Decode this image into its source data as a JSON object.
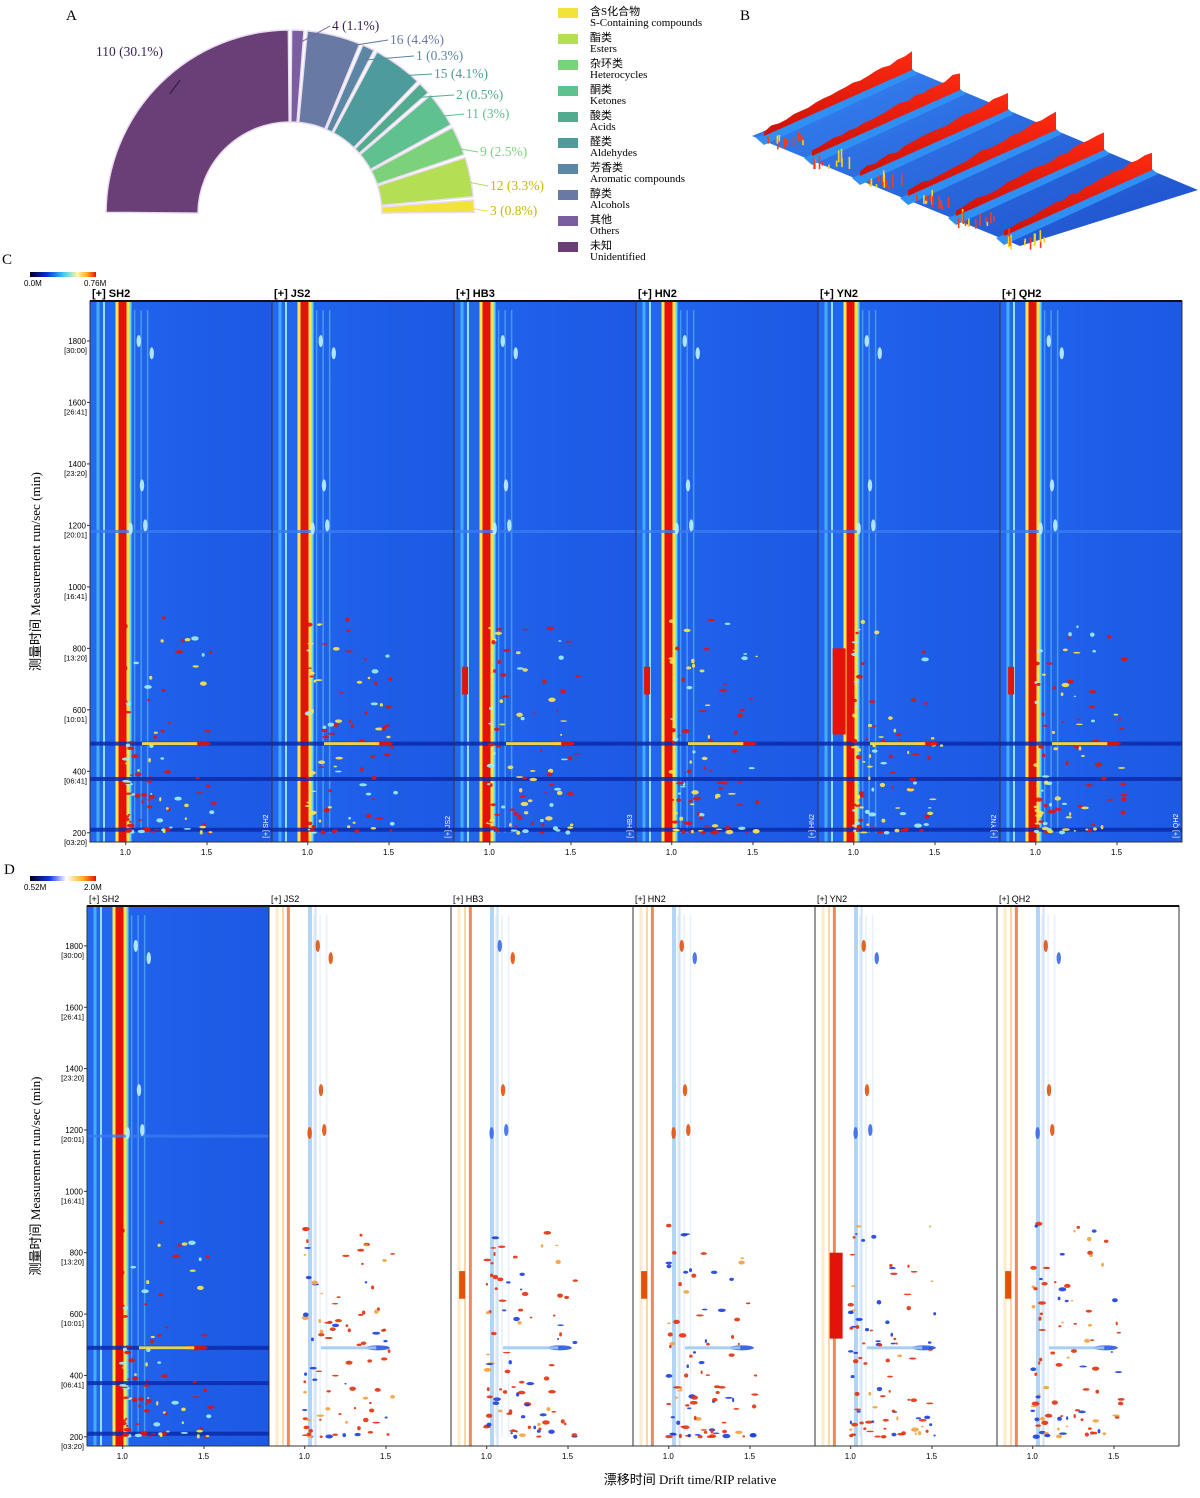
{
  "panel_letters": {
    "a": "A",
    "b": "B",
    "c": "C",
    "d": "D"
  },
  "colors": {
    "unidentified": "#6a3f78",
    "others": "#7a5ea0",
    "alcohols": "#687aa4",
    "aromatic": "#5b86a4",
    "aldehydes": "#4d9b9b",
    "acids": "#52aa8f",
    "ketones": "#5fc090",
    "heterocycles": "#7cd27b",
    "esters": "#b4de54",
    "s_containing": "#f2e33a",
    "ims_background": "#1f5ee8",
    "ims_rip": "#e3120b"
  },
  "chart_data": [
    {
      "id": "A",
      "type": "pie",
      "subtype": "half-donut",
      "slices": [
        {
          "key": "unidentified",
          "zh": "未知",
          "en": "Unidentified",
          "count": 110,
          "percent": 30.1,
          "label": "110 (30.1%)",
          "color": "#6a3f78"
        },
        {
          "key": "others",
          "zh": "其他",
          "en": "Others",
          "count": 4,
          "percent": 1.1,
          "label": "4 (1.1%)",
          "color": "#7a5ea0"
        },
        {
          "key": "alcohols",
          "zh": "醇类",
          "en": "Alcohols",
          "count": 16,
          "percent": 4.4,
          "label": "16 (4.4%)",
          "color": "#687aa4"
        },
        {
          "key": "aromatic",
          "zh": "芳香类",
          "en": "Aromatic compounds",
          "count": 1,
          "percent": 0.3,
          "label": "1 (0.3%)",
          "color": "#5b86a4"
        },
        {
          "key": "aldehydes",
          "zh": "醛类",
          "en": "Aldehydes",
          "count": 15,
          "percent": 4.1,
          "label": "15 (4.1%)",
          "color": "#4d9b9b"
        },
        {
          "key": "acids",
          "zh": "酸类",
          "en": "Acids",
          "count": 2,
          "percent": 0.5,
          "label": "2 (0.5%)",
          "color": "#52aa8f"
        },
        {
          "key": "ketones",
          "zh": "酮类",
          "en": "Ketones",
          "count": 11,
          "percent": 3,
          "label": "11 (3%)",
          "color": "#5fc090"
        },
        {
          "key": "heterocycles",
          "zh": "杂环类",
          "en": "Heterocycles",
          "count": 9,
          "percent": 2.5,
          "label": "9 (2.5%)",
          "color": "#7cd27b"
        },
        {
          "key": "esters",
          "zh": "酯类",
          "en": "Esters",
          "count": 12,
          "percent": 3.3,
          "label": "12 (3.3%)",
          "color": "#b4de54"
        },
        {
          "key": "s_containing",
          "zh": "含S化合物",
          "en": "S-Containing compounds",
          "count": 3,
          "percent": 0.8,
          "label": "3 (0.8%)",
          "color": "#f2e33a"
        }
      ],
      "legend_order": [
        "s_containing",
        "esters",
        "heterocycles",
        "ketones",
        "acids",
        "aldehydes",
        "aromatic",
        "alcohols",
        "others",
        "unidentified"
      ],
      "legend_placement": "right"
    },
    {
      "id": "B",
      "type": "heatmap",
      "subtype": "3d-topographic",
      "sample_count": 6
    },
    {
      "id": "C",
      "type": "heatmap",
      "samples": [
        "[+] SH2",
        "[+] JS2",
        "[+] HB3",
        "[+] HN2",
        "[+] YN2",
        "[+] QH2"
      ],
      "side_labels": [
        "[+] SH2",
        "[+] JS2",
        "[+] HB3",
        "[+] HN2",
        "[+] YN2",
        "[+] QH2"
      ],
      "colorbar": {
        "min_label": "0.0M",
        "max_label": "0.76M"
      },
      "ylabel": "测量时间 Measurement run/sec (min)",
      "ylim": [
        170,
        1930
      ],
      "xlim": [
        0.78,
        1.9
      ],
      "x_ticks": [
        {
          "value": 1.0,
          "label": "1.0"
        },
        {
          "value": 1.5,
          "label": "1.5"
        }
      ],
      "y_ticks": [
        {
          "value": 200,
          "label": "200",
          "sub": "[03:20]"
        },
        {
          "value": 400,
          "label": "400",
          "sub": "[06:41]"
        },
        {
          "value": 600,
          "label": "600",
          "sub": "[10:01]"
        },
        {
          "value": 800,
          "label": "800",
          "sub": "[13:20]"
        },
        {
          "value": 1000,
          "label": "1000",
          "sub": "[16:41]"
        },
        {
          "value": 1200,
          "label": "1200",
          "sub": "[20:01]"
        },
        {
          "value": 1400,
          "label": "1400",
          "sub": "[23:20]"
        },
        {
          "value": 1600,
          "label": "1600",
          "sub": "[26:41]"
        },
        {
          "value": 1800,
          "label": "1800",
          "sub": "[30:00]"
        }
      ]
    },
    {
      "id": "D",
      "type": "heatmap",
      "subtype": "difference",
      "reference": "[+] SH2",
      "samples": [
        "[+] SH2",
        "[+] JS2",
        "[+] HB3",
        "[+] HN2",
        "[+] YN2",
        "[+] QH2"
      ],
      "colorbar": {
        "min_label": "0.52M",
        "max_label": "2.0M"
      },
      "ylabel": "测量时间 Measurement run/sec (min)",
      "xlabel": "漂移时间 Drift time/RIP relative",
      "ylim": [
        170,
        1930
      ],
      "xlim": [
        0.78,
        1.9
      ],
      "x_ticks": [
        {
          "value": 1.0,
          "label": "1.0"
        },
        {
          "value": 1.5,
          "label": "1.5"
        }
      ],
      "y_ticks": [
        {
          "value": 200,
          "label": "200",
          "sub": "[03:20]"
        },
        {
          "value": 400,
          "label": "400",
          "sub": "[06:41]"
        },
        {
          "value": 600,
          "label": "600",
          "sub": "[10:01]"
        },
        {
          "value": 800,
          "label": "800",
          "sub": "[13:20]"
        },
        {
          "value": 1000,
          "label": "1000",
          "sub": "[16:41]"
        },
        {
          "value": 1200,
          "label": "1200",
          "sub": "[20:01]"
        },
        {
          "value": 1400,
          "label": "1400",
          "sub": "[23:20]"
        },
        {
          "value": 1600,
          "label": "1600",
          "sub": "[26:41]"
        },
        {
          "value": 1800,
          "label": "1800",
          "sub": "[30:00]"
        }
      ]
    }
  ]
}
